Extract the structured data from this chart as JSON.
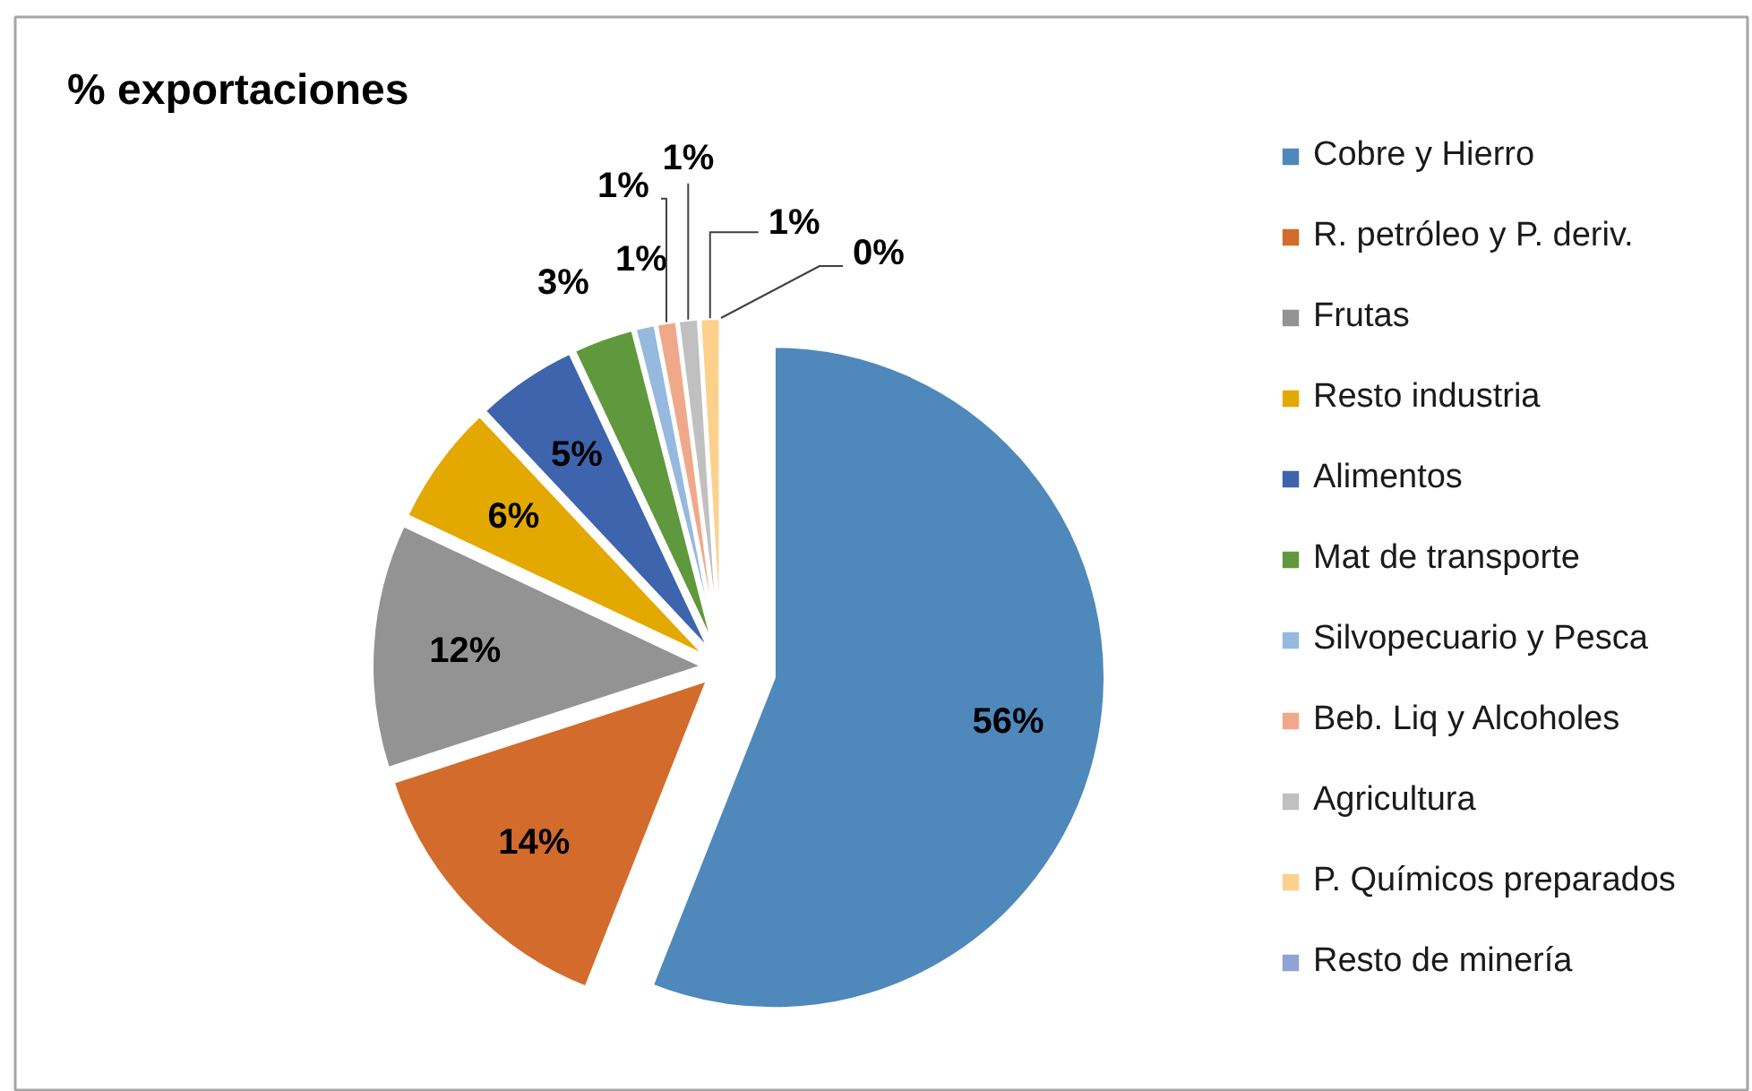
{
  "chart_data": {
    "type": "pie",
    "title": "% exportaciones",
    "categories": [
      "Cobre y Hierro",
      "R. petróleo y P. deriv.",
      "Frutas",
      "Resto industria",
      "Alimentos",
      "Mat de transporte",
      "Silvopecuario y Pesca",
      "Beb. Liq y Alcoholes",
      "Agricultura",
      "P. Químicos preparados",
      "Resto de minería"
    ],
    "values": [
      56,
      14,
      12,
      6,
      5,
      3,
      1,
      1,
      1,
      1,
      0
    ],
    "colors": [
      "#4f88bb",
      "#d26b2b",
      "#939393",
      "#e3a900",
      "#3d64ad",
      "#60993d",
      "#96b9e0",
      "#f0a88a",
      "#c0c0c0",
      "#fdd18b",
      "#8ea3d4"
    ],
    "value_labels": [
      "56%",
      "14%",
      "12%",
      "6%",
      "5%",
      "3%",
      "1%",
      "1%",
      "1%",
      "1%",
      "0%"
    ],
    "legend": "right"
  }
}
